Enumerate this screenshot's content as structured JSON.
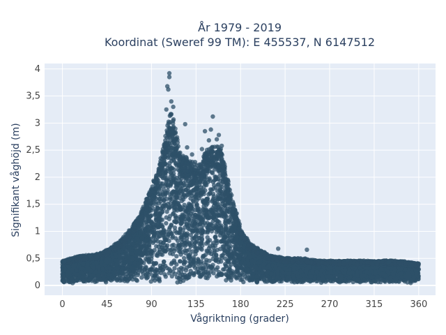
{
  "chart_data": {
    "type": "scatter",
    "title_line1": "År 1979 - 2019",
    "title_line2": "Koordinat (Sweref 99 TM): E 455537, N 6147512",
    "xlabel": "Vågriktning (grader)",
    "ylabel": "Signifikant våghöjd (m)",
    "xlim": [
      -18,
      377
    ],
    "ylim": [
      -0.18,
      4.1
    ],
    "x_ticks": [
      0,
      45,
      90,
      135,
      180,
      225,
      270,
      315,
      360
    ],
    "x_tick_labels": [
      "0",
      "45",
      "90",
      "135",
      "180",
      "225",
      "270",
      "315",
      "360"
    ],
    "y_ticks": [
      0,
      0.5,
      1,
      1.5,
      2,
      2.5,
      3,
      3.5,
      4
    ],
    "y_tick_labels": [
      "0",
      "0,5",
      "1",
      "1,5",
      "2",
      "2,5",
      "3",
      "3,5",
      "4"
    ],
    "grid": true,
    "marker_color": "#2e5068",
    "plot_bg": "#e5ecf6",
    "envelope": {
      "direction": [
        0,
        10,
        20,
        30,
        40,
        50,
        60,
        70,
        80,
        90,
        95,
        100,
        105,
        110,
        115,
        120,
        125,
        130,
        135,
        140,
        145,
        150,
        155,
        160,
        165,
        170,
        180,
        190,
        200,
        210,
        225,
        240,
        260,
        280,
        300,
        320,
        340,
        360
      ],
      "max_height": [
        0.45,
        0.5,
        0.55,
        0.55,
        0.6,
        0.7,
        0.85,
        1.05,
        1.35,
        1.8,
        2.05,
        2.35,
        2.85,
        3.25,
        2.75,
        2.35,
        2.35,
        2.25,
        2.2,
        2.25,
        2.45,
        2.5,
        2.55,
        2.5,
        2.1,
        1.7,
        1.05,
        0.75,
        0.65,
        0.55,
        0.5,
        0.5,
        0.45,
        0.45,
        0.45,
        0.45,
        0.45,
        0.4
      ]
    },
    "outliers": [
      {
        "x": 108,
        "y": 3.92
      },
      {
        "x": 108,
        "y": 3.85
      },
      {
        "x": 106,
        "y": 3.68
      },
      {
        "x": 107,
        "y": 3.62
      },
      {
        "x": 110,
        "y": 3.4
      },
      {
        "x": 112,
        "y": 3.3
      },
      {
        "x": 105,
        "y": 3.25
      },
      {
        "x": 124,
        "y": 2.98
      },
      {
        "x": 126,
        "y": 2.55
      },
      {
        "x": 131,
        "y": 2.42
      },
      {
        "x": 134,
        "y": 2.28
      },
      {
        "x": 144,
        "y": 2.85
      },
      {
        "x": 150,
        "y": 2.88
      },
      {
        "x": 152,
        "y": 3.12
      },
      {
        "x": 158,
        "y": 2.78
      },
      {
        "x": 156,
        "y": 2.7
      },
      {
        "x": 148,
        "y": 2.68
      },
      {
        "x": 161,
        "y": 2.58
      },
      {
        "x": 141,
        "y": 2.52
      },
      {
        "x": 218,
        "y": 0.68
      },
      {
        "x": 247,
        "y": 0.66
      },
      {
        "x": 353,
        "y": 0.38
      },
      {
        "x": 2,
        "y": 0.44
      },
      {
        "x": 28,
        "y": 0.55
      },
      {
        "x": 194,
        "y": 0.7
      },
      {
        "x": 288,
        "y": 0.46
      },
      {
        "x": 330,
        "y": 0.43
      }
    ]
  }
}
